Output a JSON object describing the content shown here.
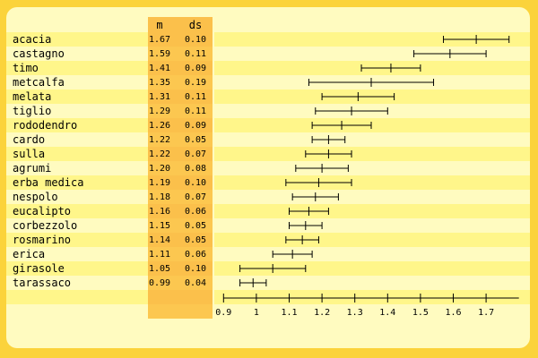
{
  "columns": {
    "mean": "m",
    "sd": "ds"
  },
  "colors": {
    "outer_bg": "#fbd33b",
    "panel_bg": "#fffbc0",
    "stripe_light": "#fffbc0",
    "stripe_dark": "#fff68a",
    "num_col_bg": "#fbc04b",
    "num_col_bg_alt": "#fcc750"
  },
  "chart_data": {
    "type": "errorbar",
    "categories": [
      "acacia",
      "castagno",
      "timo",
      "metcalfa",
      "melata",
      "tiglio",
      "rododendro",
      "cardo",
      "sulla",
      "agrumi",
      "erba medica",
      "nespolo",
      "eucalipto",
      "corbezzolo",
      "rosmarino",
      "erica",
      "girasole",
      "tarassaco"
    ],
    "means": [
      1.67,
      1.59,
      1.41,
      1.35,
      1.31,
      1.29,
      1.26,
      1.22,
      1.22,
      1.2,
      1.19,
      1.18,
      1.16,
      1.15,
      1.14,
      1.11,
      1.05,
      0.99
    ],
    "sds": [
      0.1,
      0.11,
      0.09,
      0.19,
      0.11,
      0.11,
      0.09,
      0.05,
      0.07,
      0.08,
      0.1,
      0.07,
      0.06,
      0.05,
      0.05,
      0.06,
      0.1,
      0.04
    ],
    "mean_labels": [
      "1.67",
      "1.59",
      "1.41",
      "1.35",
      "1.31",
      "1.29",
      "1.26",
      "1.22",
      "1.22",
      "1.20",
      "1.19",
      "1.18",
      "1.16",
      "1.15",
      "1.14",
      "1.11",
      "1.05",
      "0.99"
    ],
    "sd_labels": [
      "0.10",
      "0.11",
      "0.09",
      "0.19",
      "0.11",
      "0.11",
      "0.09",
      "0.05",
      "0.07",
      "0.08",
      "0.10",
      "0.07",
      "0.06",
      "0.05",
      "0.05",
      "0.06",
      "0.10",
      "0.04"
    ],
    "x_ticks": [
      0.9,
      1,
      1.1,
      1.2,
      1.3,
      1.4,
      1.5,
      1.6,
      1.7
    ],
    "x_tick_labels": [
      "0.9",
      "1",
      "1.1",
      "1.2",
      "1.3",
      "1.4",
      "1.5",
      "1.6",
      "1.7"
    ],
    "xlim": [
      0.9,
      1.8
    ]
  }
}
